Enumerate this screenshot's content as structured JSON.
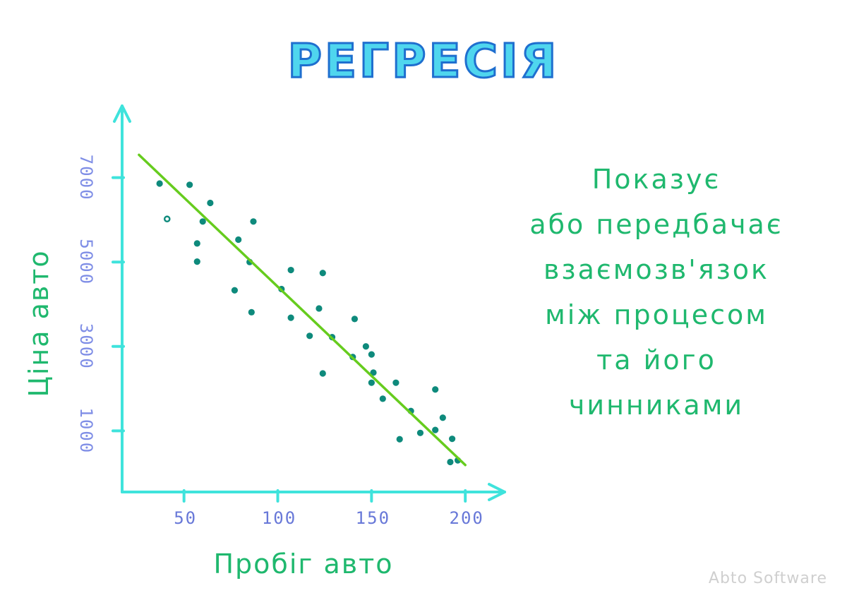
{
  "title": "РЕГРЕСІЯ",
  "description_lines": [
    "Показує",
    "або передбачає",
    "взаємозв'язок",
    "між процесом",
    "та його",
    "чинниками"
  ],
  "watermark": "Abto Software",
  "colors": {
    "axis": "#3fe3dc",
    "points": "#0e8a7c",
    "regression_line": "#66cc1e",
    "ticks": "#7f8ee6",
    "labels": "#1fb86e",
    "title_fill": "#4fd6ee",
    "title_outline": "#1f6fcf"
  },
  "chart_data": {
    "type": "scatter",
    "xlabel": "Пробіг авто",
    "ylabel": "Ціна авто",
    "x_ticks": [
      50,
      100,
      150,
      200
    ],
    "x_tick_labels": [
      "50",
      "100",
      "150",
      "200"
    ],
    "y_ticks": [
      1000,
      3000,
      5000,
      7000
    ],
    "y_tick_labels": [
      "1000",
      "3000",
      "5000",
      "7000"
    ],
    "xlim": [
      17,
      221
    ],
    "ylim": [
      -450,
      8700
    ],
    "grid": false,
    "legend": "none",
    "points": [
      {
        "x": 37,
        "y": 6860,
        "filled": true
      },
      {
        "x": 41,
        "y": 6020,
        "filled": false
      },
      {
        "x": 53,
        "y": 6830,
        "filled": true
      },
      {
        "x": 57,
        "y": 5440,
        "filled": true
      },
      {
        "x": 57,
        "y": 5010,
        "filled": true
      },
      {
        "x": 60,
        "y": 5960,
        "filled": true
      },
      {
        "x": 64,
        "y": 6400,
        "filled": true
      },
      {
        "x": 77,
        "y": 4330,
        "filled": true
      },
      {
        "x": 79,
        "y": 5530,
        "filled": true
      },
      {
        "x": 85,
        "y": 5000,
        "filled": true
      },
      {
        "x": 86,
        "y": 3810,
        "filled": true
      },
      {
        "x": 87,
        "y": 5960,
        "filled": true
      },
      {
        "x": 102,
        "y": 4360,
        "filled": true
      },
      {
        "x": 107,
        "y": 4810,
        "filled": true
      },
      {
        "x": 107,
        "y": 3680,
        "filled": true
      },
      {
        "x": 117,
        "y": 3250,
        "filled": true
      },
      {
        "x": 122,
        "y": 3900,
        "filled": true
      },
      {
        "x": 124,
        "y": 4740,
        "filled": true
      },
      {
        "x": 124,
        "y": 2360,
        "filled": true
      },
      {
        "x": 129,
        "y": 3220,
        "filled": true
      },
      {
        "x": 140,
        "y": 2750,
        "filled": true
      },
      {
        "x": 141,
        "y": 3650,
        "filled": true
      },
      {
        "x": 147,
        "y": 3000,
        "filled": true
      },
      {
        "x": 150,
        "y": 2810,
        "filled": true
      },
      {
        "x": 151,
        "y": 2380,
        "filled": true
      },
      {
        "x": 150,
        "y": 2140,
        "filled": true
      },
      {
        "x": 156,
        "y": 1760,
        "filled": true
      },
      {
        "x": 163,
        "y": 2140,
        "filled": true
      },
      {
        "x": 165,
        "y": 800,
        "filled": true
      },
      {
        "x": 171,
        "y": 1470,
        "filled": true
      },
      {
        "x": 176,
        "y": 950,
        "filled": true
      },
      {
        "x": 184,
        "y": 1020,
        "filled": true
      },
      {
        "x": 184,
        "y": 1980,
        "filled": true
      },
      {
        "x": 188,
        "y": 1310,
        "filled": true
      },
      {
        "x": 192,
        "y": 260,
        "filled": true
      },
      {
        "x": 193,
        "y": 810,
        "filled": true
      },
      {
        "x": 196,
        "y": 300,
        "filled": true
      }
    ],
    "regression_line": {
      "x1": 26,
      "y1": 7540,
      "x2": 200,
      "y2": 190
    }
  }
}
